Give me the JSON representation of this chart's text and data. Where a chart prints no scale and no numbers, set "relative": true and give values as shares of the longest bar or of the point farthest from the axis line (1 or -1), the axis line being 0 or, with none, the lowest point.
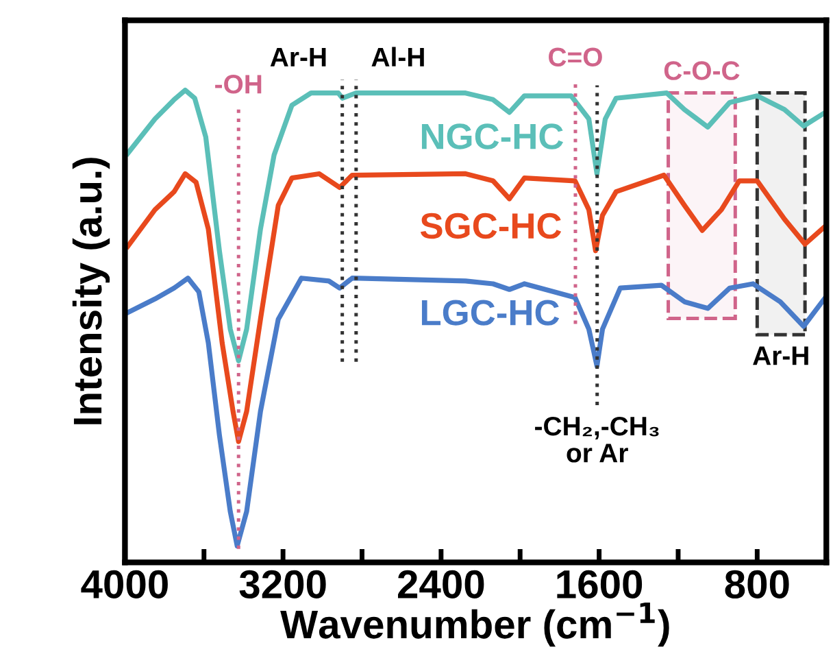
{
  "chart_data": {
    "type": "line",
    "relative": true,
    "xlabel": "Wavenumber (cm$^{−1}$)",
    "ylabel": "Intensity (a.u.)",
    "xlim": [
      4000,
      450
    ],
    "xticks": [
      4000,
      {
        "value": 3600,
        "label": null
      },
      3200,
      {
        "value": 2800,
        "label": null
      },
      2400,
      {
        "value": 2000,
        "label": null
      },
      1600,
      {
        "value": 1200,
        "label": null
      },
      800
    ],
    "tick_labels": "x",
    "grid": false,
    "legend": false,
    "line_style": "solid",
    "marker": "none",
    "series": [
      {
        "name": "NGC-HC",
        "color": "#5bbfb8",
        "x": [
          3986,
          3848,
          3751,
          3695,
          3647,
          3591,
          3522,
          3467,
          3425,
          3384,
          3314,
          3245,
          3155,
          3058,
          2920,
          2899,
          2830,
          2276,
          2137,
          2054,
          1978,
          1742,
          1652,
          1611,
          1569,
          1514,
          1258,
          1168,
          1050,
          939,
          800,
          662,
          565,
          455
        ],
        "values": [
          0.866,
          0.939,
          0.98,
          1.0,
          0.983,
          0.901,
          0.66,
          0.494,
          0.427,
          0.494,
          0.706,
          0.863,
          0.968,
          0.994,
          0.994,
          0.983,
          0.994,
          0.994,
          0.98,
          0.953,
          0.988,
          0.988,
          0.939,
          0.823,
          0.939,
          0.983,
          0.994,
          0.959,
          0.922,
          0.974,
          0.988,
          0.959,
          0.924,
          0.953
        ]
      },
      {
        "name": "SGC-HC",
        "color": "#e8491d",
        "x": [
          3986,
          3848,
          3751,
          3695,
          3640,
          3578,
          3508,
          3453,
          3425,
          3384,
          3314,
          3224,
          3155,
          3017,
          2913,
          2850,
          2276,
          2137,
          2054,
          1978,
          1722,
          1652,
          1618,
          1583,
          1514,
          1272,
          1168,
          1078,
          981,
          891,
          800,
          662,
          558,
          455
        ],
        "values": [
          0.669,
          0.747,
          0.785,
          0.823,
          0.805,
          0.706,
          0.465,
          0.32,
          0.256,
          0.32,
          0.515,
          0.756,
          0.814,
          0.823,
          0.794,
          0.82,
          0.823,
          0.808,
          0.77,
          0.814,
          0.808,
          0.747,
          0.66,
          0.735,
          0.785,
          0.82,
          0.756,
          0.703,
          0.747,
          0.808,
          0.808,
          0.727,
          0.674,
          0.712
        ]
      },
      {
        "name": "LGC-HC",
        "color": "#4a7cc9",
        "x": [
          3986,
          3848,
          3751,
          3681,
          3626,
          3578,
          3522,
          3467,
          3432,
          3384,
          3314,
          3224,
          3107,
          2968,
          2913,
          2850,
          2276,
          2137,
          2054,
          1978,
          1722,
          1652,
          1611,
          1583,
          1493,
          1285,
          1168,
          1050,
          939,
          821,
          683,
          565,
          455
        ],
        "values": [
          0.529,
          0.558,
          0.581,
          0.602,
          0.573,
          0.465,
          0.27,
          0.108,
          0.035,
          0.108,
          0.32,
          0.515,
          0.602,
          0.596,
          0.581,
          0.602,
          0.596,
          0.59,
          0.578,
          0.59,
          0.561,
          0.494,
          0.416,
          0.494,
          0.581,
          0.587,
          0.552,
          0.538,
          0.581,
          0.59,
          0.552,
          0.5,
          0.561
        ]
      }
    ],
    "ref_lines": [
      {
        "axis": "x",
        "value": 3425,
        "label": "-OH",
        "color": "#d0648a",
        "line_style": "dotted"
      },
      {
        "axis": "x",
        "value": 2900,
        "label": "Ar-H",
        "color": "#333333",
        "line_style": "dotted"
      },
      {
        "axis": "x",
        "value": 2830,
        "label": "Al-H",
        "color": "#333333",
        "line_style": "dotted"
      },
      {
        "axis": "x",
        "value": 1720,
        "label": "C=O",
        "color": "#d0648a",
        "line_style": "dotted"
      },
      {
        "axis": "x",
        "value": 1610,
        "label": "-CH₂,-CH₃\nor Ar",
        "color": "#333333",
        "line_style": "dotted"
      }
    ],
    "bands": [
      {
        "axis": "x",
        "from": 1250,
        "to": 911,
        "label": "C-O-C",
        "color": "#d0648a"
      },
      {
        "axis": "x",
        "from": 800,
        "to": 558,
        "label": "Ar-H",
        "color": "#333333"
      }
    ]
  }
}
